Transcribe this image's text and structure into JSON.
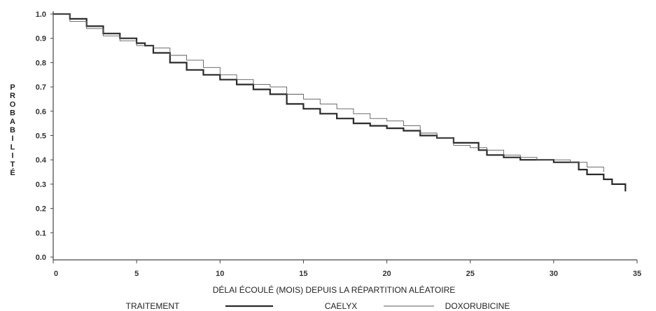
{
  "chart_data": {
    "type": "line",
    "step": true,
    "xlabel": "DÉLAI ÉCOULÉ (MOIS) DEPUIS LA RÉPARTITION ALÉATOIRE",
    "ylabel": "PROBABILITÉ",
    "xlim": [
      0,
      35
    ],
    "ylim": [
      0,
      1.0
    ],
    "x_ticks": [
      "0",
      "5",
      "10",
      "15",
      "20",
      "25",
      "30",
      "35"
    ],
    "y_ticks": [
      "0.0",
      "0.1",
      "0.2",
      "0.3",
      "0.4",
      "0.5",
      "0.6",
      "0.7",
      "0.8",
      "0.9",
      "1.0"
    ],
    "grid": false,
    "legend": {
      "position": "bottom",
      "title": "TRAITEMENT"
    },
    "series": [
      {
        "name": "CAELYX",
        "color": "#2a2a2a",
        "x": [
          0,
          1,
          2,
          3,
          4,
          5,
          5.5,
          6,
          7,
          8,
          9,
          10,
          11,
          12,
          13,
          14,
          15,
          16,
          17,
          18,
          19,
          20,
          21,
          22,
          23,
          24,
          25,
          25.5,
          26,
          27,
          28,
          29,
          30,
          31,
          31.5,
          32,
          33,
          33.5,
          34,
          34.3
        ],
        "y": [
          1.0,
          0.98,
          0.95,
          0.92,
          0.9,
          0.88,
          0.87,
          0.84,
          0.8,
          0.77,
          0.75,
          0.73,
          0.71,
          0.69,
          0.67,
          0.63,
          0.61,
          0.59,
          0.57,
          0.55,
          0.54,
          0.53,
          0.52,
          0.5,
          0.49,
          0.47,
          0.47,
          0.44,
          0.42,
          0.41,
          0.4,
          0.4,
          0.39,
          0.39,
          0.36,
          0.34,
          0.32,
          0.3,
          0.3,
          0.27
        ]
      },
      {
        "name": "DOXORUBICINE",
        "color": "#5a5a5a",
        "x": [
          0,
          1,
          2,
          3,
          4,
          5,
          6,
          7,
          8,
          9,
          10,
          11,
          12,
          13,
          14,
          15,
          16,
          17,
          18,
          19,
          20,
          21,
          22,
          23,
          24,
          25,
          26,
          27,
          28,
          29,
          30,
          31,
          32,
          33
        ],
        "y": [
          1.0,
          0.97,
          0.94,
          0.91,
          0.89,
          0.87,
          0.86,
          0.83,
          0.81,
          0.78,
          0.75,
          0.73,
          0.71,
          0.7,
          0.67,
          0.65,
          0.63,
          0.61,
          0.59,
          0.57,
          0.56,
          0.54,
          0.51,
          0.49,
          0.46,
          0.45,
          0.44,
          0.42,
          0.41,
          0.4,
          0.4,
          0.39,
          0.37,
          0.35
        ]
      }
    ]
  }
}
